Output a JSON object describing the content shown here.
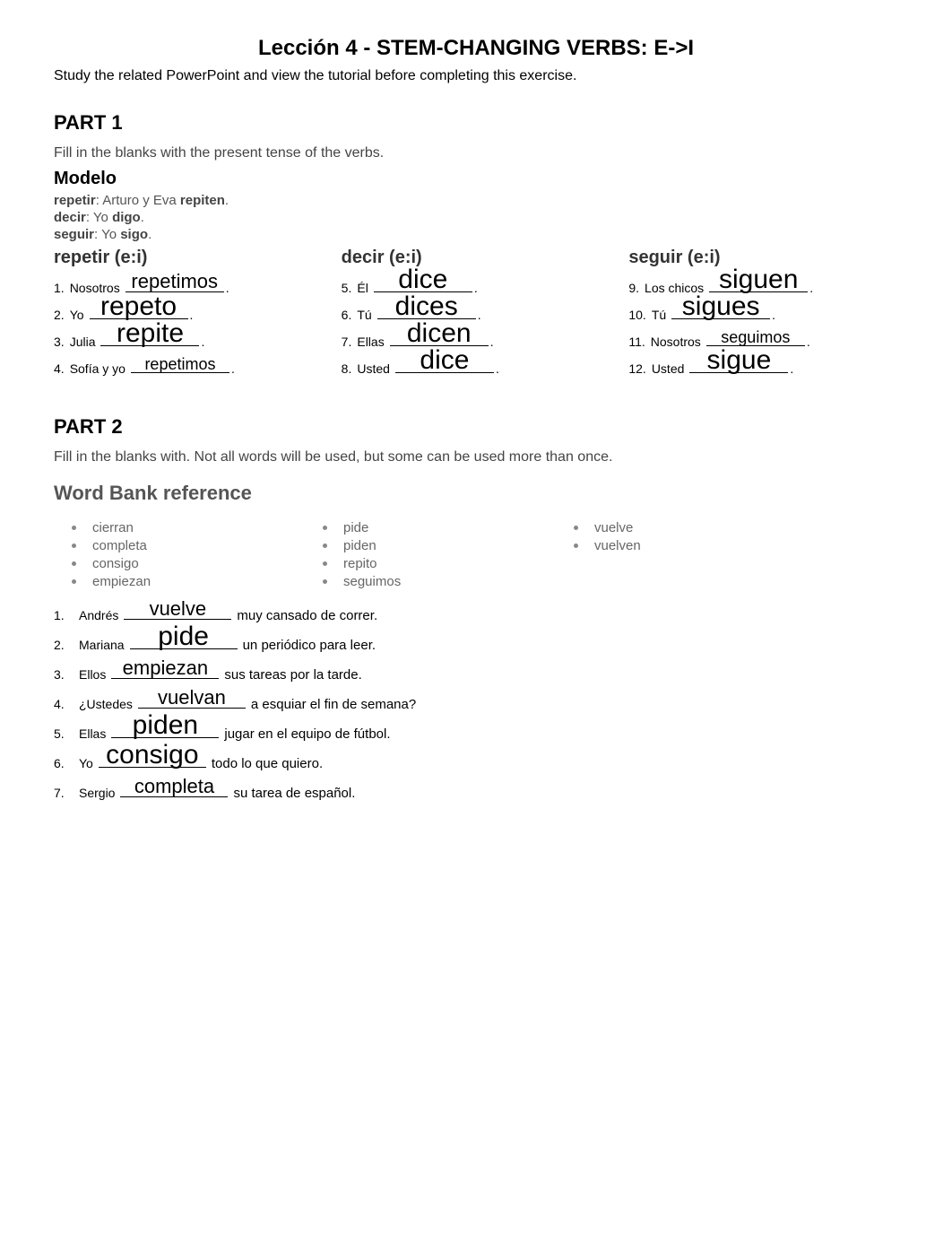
{
  "title": "Lección 4 - STEM-CHANGING VERBS: E->I",
  "subtitle": "Study the related PowerPoint and view the tutorial before completing this exercise.",
  "part1": {
    "heading": "PART 1",
    "instructions": "Fill in the blanks with the present tense of the verbs.",
    "modelo_heading": "Modelo",
    "modelo_lines": [
      {
        "verb": "repetir",
        "rest": ": Arturo y Eva ",
        "bold": "repiten",
        "end": "."
      },
      {
        "verb": "decir",
        "rest": ": Yo ",
        "bold": "digo",
        "end": "."
      },
      {
        "verb": "seguir",
        "rest": ": Yo ",
        "bold": "sigo",
        "end": "."
      }
    ],
    "columns": [
      {
        "header": "repetir (e:i)",
        "items": [
          {
            "num": "1.",
            "subject": "Nosotros",
            "answer": "repetimos",
            "size": "md"
          },
          {
            "num": "2.",
            "subject": "Yo",
            "answer": "repeto",
            "size": "lg"
          },
          {
            "num": "3.",
            "subject": "Julia",
            "answer": "repite",
            "size": "lg"
          },
          {
            "num": "4.",
            "subject": "Sofía y yo",
            "answer": "repetimos",
            "size": "sm"
          }
        ]
      },
      {
        "header": "decir (e:i)",
        "items": [
          {
            "num": "5.",
            "subject": "Él",
            "answer": "dice",
            "size": "lg"
          },
          {
            "num": "6.",
            "subject": "Tú",
            "answer": "dices",
            "size": "lg"
          },
          {
            "num": "7.",
            "subject": "Ellas",
            "answer": "dicen",
            "size": "lg"
          },
          {
            "num": "8.",
            "subject": "Usted",
            "answer": "dice",
            "size": "lg"
          }
        ]
      },
      {
        "header": "seguir (e:i)",
        "items": [
          {
            "num": "9.",
            "subject": "Los chicos",
            "answer": "siguen",
            "size": "lg"
          },
          {
            "num": "10.",
            "subject": "Tú",
            "answer": "sigues",
            "size": "lg"
          },
          {
            "num": "11.",
            "subject": "Nosotros",
            "answer": "seguimos",
            "size": "sm"
          },
          {
            "num": "12.",
            "subject": "Usted",
            "answer": "sigue",
            "size": "lg"
          }
        ]
      }
    ]
  },
  "part2": {
    "heading": "PART 2",
    "instructions": "Fill in the blanks with. Not all words will be used, but some can be used more than once.",
    "wordbank_heading": "Word Bank reference",
    "wordbank_cols": [
      [
        "cierran",
        "completa",
        "consigo",
        "empiezan"
      ],
      [
        "pide",
        "piden",
        "repito",
        "seguimos"
      ],
      [
        "vuelve",
        "vuelven"
      ]
    ],
    "items": [
      {
        "num": "1.",
        "subject": "Andrés",
        "answer": "vuelve",
        "size": "md",
        "tail": " muy cansado de correr."
      },
      {
        "num": "2.",
        "subject": "Mariana",
        "answer": "pide",
        "size": "lg",
        "tail": " un periódico para leer."
      },
      {
        "num": "3.",
        "subject": "Ellos",
        "answer": "empiezan",
        "size": "md",
        "tail": " sus tareas por la tarde."
      },
      {
        "num": "4.",
        "subject": "¿Ustedes",
        "answer": "vuelvan",
        "size": "md",
        "tail": " a esquiar el fin de semana?"
      },
      {
        "num": "5.",
        "subject": "Ellas",
        "answer": "piden",
        "size": "lg",
        "tail": " jugar en el equipo de fútbol."
      },
      {
        "num": "6.",
        "subject": "Yo",
        "answer": "consigo",
        "size": "lg",
        "tail": " todo lo que quiero."
      },
      {
        "num": "7.",
        "subject": "Sergio",
        "answer": "completa",
        "size": "md",
        "tail": " su tarea de español."
      }
    ]
  },
  "colors": {
    "text": "#000000",
    "muted": "#555555",
    "bullet": "#888888",
    "background": "#ffffff"
  }
}
